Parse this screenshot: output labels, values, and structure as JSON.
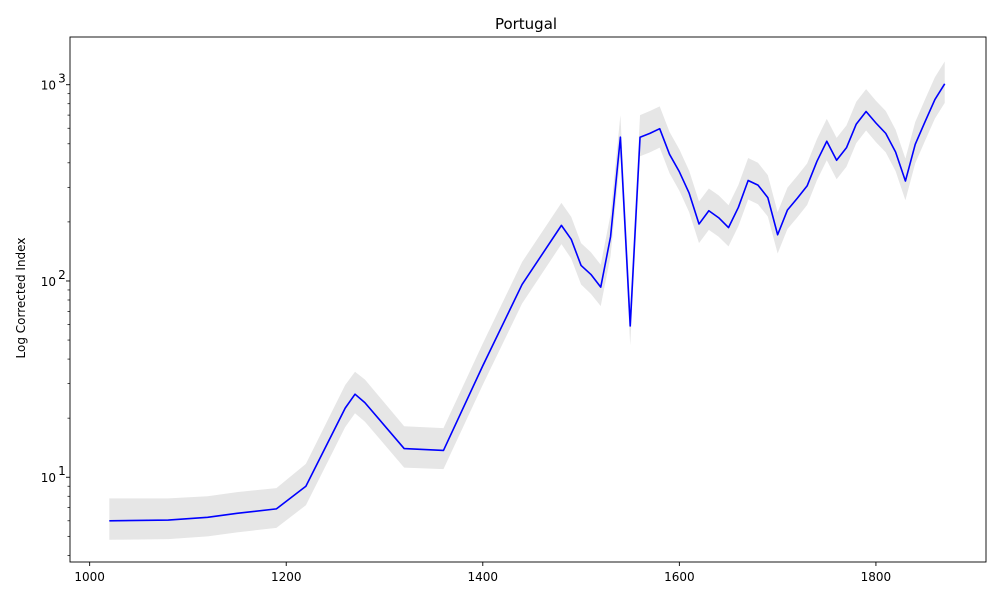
{
  "chart_data": {
    "type": "line",
    "title": "Portugal",
    "xlabel": "",
    "ylabel": "Log Corrected Index",
    "yscale": "log",
    "xlim": [
      980,
      1912
    ],
    "ylim": [
      3.7,
      1750
    ],
    "x_ticks": [
      1000,
      1200,
      1400,
      1600,
      1800
    ],
    "x_tick_labels": [
      "1000",
      "1200",
      "1400",
      "1600",
      "1800"
    ],
    "y_ticks": [
      10,
      100,
      1000
    ],
    "y_tick_labels": [
      "10",
      "10",
      "10"
    ],
    "y_tick_exponents": [
      "1",
      "2",
      "3"
    ],
    "grid": false,
    "line_color": "#0000ff",
    "band_color": "#e6e6e6",
    "series": [
      {
        "x": [
          1020,
          1080,
          1120,
          1150,
          1190,
          1220,
          1260,
          1270,
          1280,
          1320,
          1360,
          1400,
          1440,
          1480,
          1490,
          1500,
          1510,
          1520,
          1530,
          1540,
          1550,
          1560,
          1570,
          1580,
          1590,
          1600,
          1610,
          1620,
          1630,
          1640,
          1650,
          1660,
          1670,
          1680,
          1690,
          1700,
          1710,
          1720,
          1730,
          1740,
          1750,
          1760,
          1770,
          1780,
          1790,
          1800,
          1810,
          1820,
          1830,
          1840,
          1850,
          1860,
          1870
        ],
        "values": [
          6,
          6.05,
          6.25,
          6.55,
          6.9,
          9,
          22.5,
          26.5,
          24,
          14,
          13.7,
          37,
          96,
          192,
          163,
          120,
          108,
          93,
          168,
          540,
          59,
          540,
          565,
          597,
          442,
          360,
          280,
          195,
          228,
          210,
          187,
          237,
          325,
          308,
          266,
          172,
          230,
          264,
          305,
          407,
          515,
          412,
          477,
          630,
          730,
          638,
          565,
          454,
          323,
          497,
          648,
          840,
          1010
        ],
        "upper": [
          7.8,
          7.8,
          8.0,
          8.4,
          8.8,
          11.7,
          29.5,
          34.5,
          31.5,
          18.2,
          17.8,
          48,
          125,
          250,
          212,
          156,
          140,
          121,
          218,
          700,
          76,
          700,
          735,
          776,
          575,
          468,
          364,
          254,
          296,
          273,
          243,
          308,
          423,
          400,
          346,
          224,
          299,
          343,
          397,
          529,
          670,
          536,
          620,
          819,
          949,
          829,
          735,
          590,
          420,
          646,
          842,
          1092,
          1313
        ],
        "lower": [
          4.8,
          4.84,
          5.0,
          5.24,
          5.52,
          7.2,
          18,
          21.2,
          19.2,
          11.2,
          11,
          29.6,
          76.8,
          154,
          130,
          96,
          86,
          74.4,
          134,
          432,
          47,
          432,
          452,
          478,
          354,
          288,
          224,
          156,
          182,
          168,
          150,
          190,
          260,
          246,
          213,
          138,
          184,
          211,
          244,
          326,
          412,
          330,
          382,
          504,
          584,
          510,
          452,
          363,
          258,
          398,
          518,
          672,
          808
        ]
      }
    ]
  }
}
